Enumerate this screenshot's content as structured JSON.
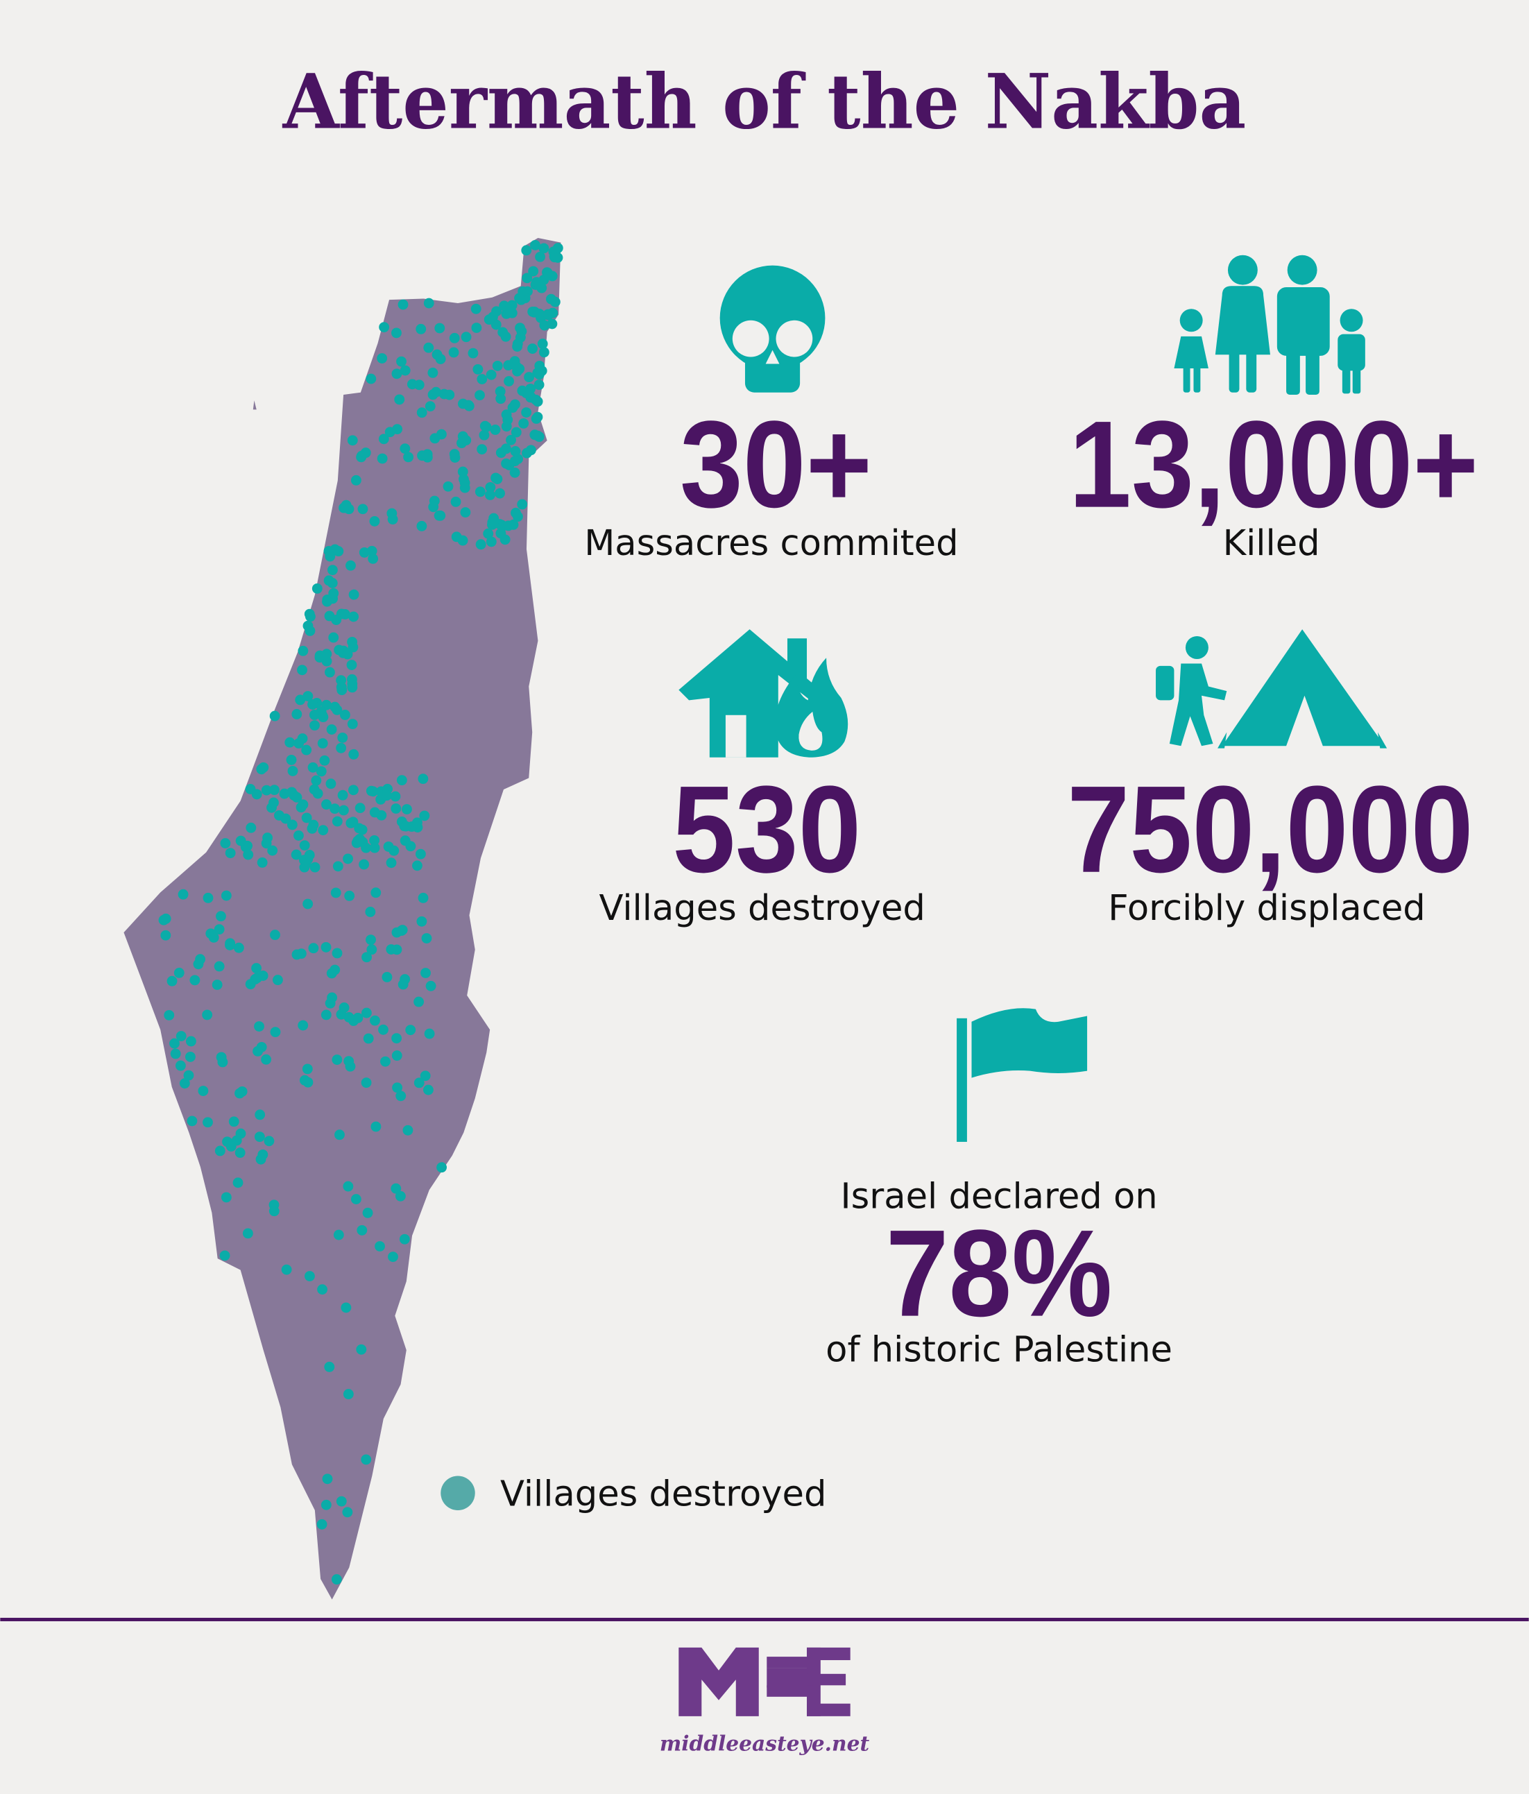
{
  "title": "Aftermath of the Nakba",
  "stats": [
    {
      "value": "30+",
      "label": "Massacres commited",
      "icon": "skull-icon"
    },
    {
      "value": "13,000+",
      "label": "Killed",
      "icon": "family-icon"
    },
    {
      "value": "530",
      "label": "Villages destroyed",
      "icon": "house-fire-icon"
    },
    {
      "value": "750,000",
      "label": "Forcibly displaced",
      "icon": "refugee-tent-icon"
    }
  ],
  "declaration": {
    "prefix": "Israel declared on",
    "value": "78%",
    "suffix": "of historic Palestine",
    "icon": "flag-icon"
  },
  "map": {
    "legend_label": "Villages destroyed",
    "dot_count": 530
  },
  "footer": {
    "logo_text": "MEE",
    "url": "middleeasteye.net"
  },
  "colors": {
    "background": "#f1f0ee",
    "title": "#4a1462",
    "accent": "#0aaca8",
    "map_fill": "#877899",
    "legend_dot": "#55aaa8",
    "logo": "#6e3a8a"
  }
}
